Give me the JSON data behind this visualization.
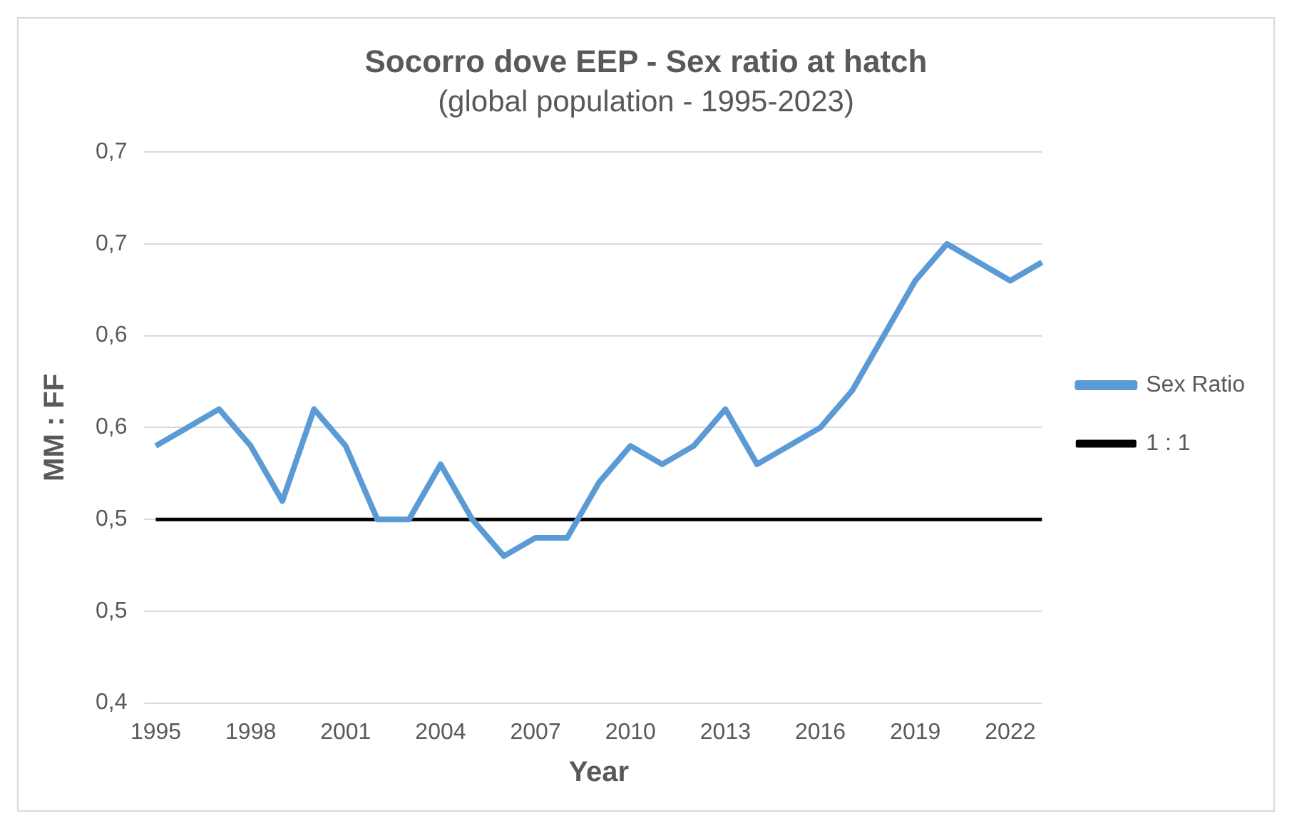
{
  "chart_data": {
    "type": "line",
    "title": "Socorro dove EEP - Sex ratio at hatch",
    "subtitle": "(global population - 1995-2023)",
    "xlabel": "Year",
    "ylabel": "MM : FF",
    "categories": [
      "1995",
      null,
      null,
      "1998",
      null,
      null,
      "2001",
      null,
      null,
      "2004",
      null,
      null,
      "2007",
      null,
      null,
      "2010",
      null,
      null,
      "2013",
      null,
      null,
      "2016",
      null,
      null,
      "2019",
      null,
      null,
      "2022",
      null
    ],
    "series": [
      {
        "name": "Sex Ratio",
        "color": "#5b9bd5",
        "values": [
          0.54,
          0.55,
          0.56,
          0.54,
          0.51,
          0.56,
          0.54,
          0.5,
          0.5,
          0.53,
          0.5,
          0.48,
          0.49,
          0.49,
          0.52,
          0.54,
          0.53,
          0.54,
          0.56,
          0.53,
          0.54,
          0.55,
          0.57,
          0.6,
          0.63,
          0.65,
          0.64,
          0.63,
          0.64
        ]
      },
      {
        "name": "1 : 1",
        "color": "#000000",
        "values": [
          0.5,
          0.5,
          0.5,
          0.5,
          0.5,
          0.5,
          0.5,
          0.5,
          0.5,
          0.5,
          0.5,
          0.5,
          0.5,
          0.5,
          0.5,
          0.5,
          0.5,
          0.5,
          0.5,
          0.5,
          0.5,
          0.5,
          0.5,
          0.5,
          0.5,
          0.5,
          0.5,
          0.5,
          0.5
        ]
      }
    ],
    "ylim": [
      0.4,
      0.7
    ],
    "yticks": [
      {
        "value": 0.4,
        "label": "0,4"
      },
      {
        "value": 0.45,
        "label": "0,5"
      },
      {
        "value": 0.5,
        "label": "0,5"
      },
      {
        "value": 0.55,
        "label": "0,6"
      },
      {
        "value": 0.6,
        "label": "0,6"
      },
      {
        "value": 0.65,
        "label": "0,7"
      },
      {
        "value": 0.7,
        "label": "0,7"
      }
    ],
    "grid": "y",
    "legend": "right",
    "marker": "none",
    "line_style": "solid"
  }
}
